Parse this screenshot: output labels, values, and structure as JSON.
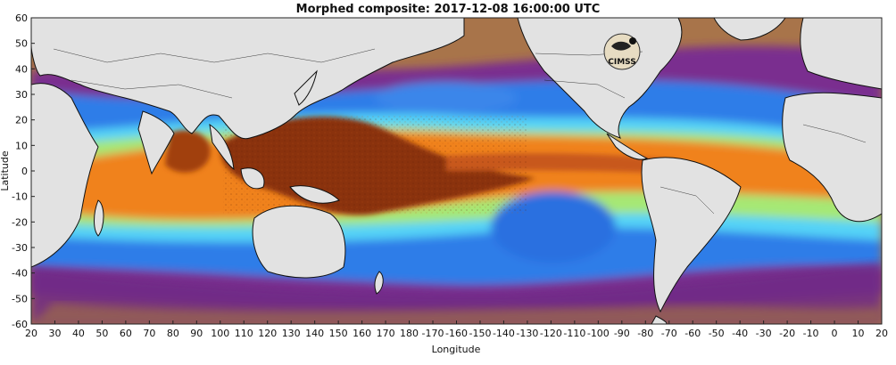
{
  "title": "Morphed composite: 2017-12-08 16:00:00 UTC",
  "x_label": "Longitude",
  "y_label": "Latitude",
  "x_ticks": [
    "20",
    "30",
    "40",
    "50",
    "60",
    "70",
    "80",
    "90",
    "100",
    "110",
    "120",
    "130",
    "140",
    "150",
    "160",
    "170",
    "180",
    "-170",
    "-160",
    "-150",
    "-140",
    "-130",
    "-120",
    "-110",
    "-100",
    "-90",
    "-80",
    "-70",
    "-60",
    "-50",
    "-40",
    "-30",
    "-20",
    "-10",
    "0",
    "10",
    "20"
  ],
  "y_ticks": [
    "60",
    "50",
    "40",
    "30",
    "20",
    "10",
    "0",
    "-10",
    "-20",
    "-30",
    "-40",
    "-50",
    "-60"
  ],
  "logo_text": "CIMSS",
  "colors": {
    "land": "#e2e2e2",
    "dry": "#b07a4a",
    "purple": "#7a2f8f",
    "blue": "#1f6fe0",
    "cyan": "#4fd6ff",
    "green": "#8de86a",
    "orange": "#f07a1e",
    "darkorange": "#8a3208"
  }
}
